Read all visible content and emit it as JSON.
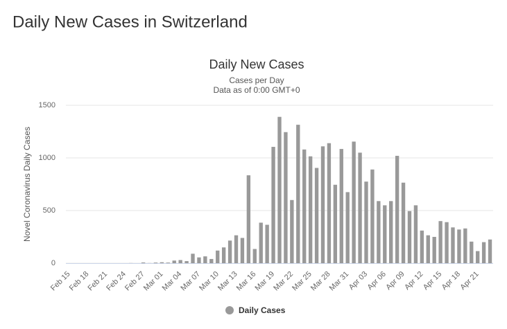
{
  "header": {
    "title": "Daily New Cases in Switzerland"
  },
  "chart_data": {
    "type": "bar",
    "title": "Daily New Cases",
    "subtitle": "Cases per Day",
    "note": "Data as of 0:00 GMT+0",
    "y_label": "Novel Coronavirus Daily Cases",
    "categories": [
      "Feb 15",
      null,
      null,
      "Feb 18",
      null,
      null,
      "Feb 21",
      null,
      null,
      "Feb 24",
      null,
      null,
      "Feb 27",
      null,
      null,
      "Mar 01",
      null,
      null,
      "Mar 04",
      null,
      null,
      "Mar 07",
      null,
      null,
      "Mar 10",
      null,
      null,
      "Mar 13",
      null,
      null,
      "Mar 16",
      null,
      null,
      "Mar 19",
      null,
      null,
      "Mar 22",
      null,
      null,
      "Mar 25",
      null,
      null,
      "Mar 28",
      null,
      null,
      "Mar 31",
      null,
      null,
      "Apr 03",
      null,
      null,
      "Apr 06",
      null,
      null,
      "Apr 09",
      null,
      null,
      "Apr 12",
      null,
      null,
      "Apr 15",
      null,
      null,
      "Apr 18",
      null,
      null,
      "Apr 21",
      null,
      null
    ],
    "series": [
      {
        "name": "Daily Cases",
        "color": "#999999",
        "values": [
          0,
          0,
          0,
          0,
          0,
          0,
          0,
          0,
          0,
          0,
          1,
          0,
          7,
          1,
          6,
          9,
          6,
          25,
          30,
          20,
          90,
          55,
          65,
          40,
          120,
          150,
          215,
          265,
          240,
          835,
          135,
          385,
          365,
          1105,
          1390,
          1245,
          600,
          1315,
          1080,
          1015,
          905,
          1110,
          1140,
          745,
          1085,
          675,
          1155,
          1050,
          775,
          890,
          590,
          550,
          590,
          1020,
          765,
          495,
          550,
          310,
          265,
          250,
          400,
          390,
          340,
          320,
          330,
          205,
          115,
          200,
          225
        ]
      }
    ],
    "ylim": [
      0,
      1500
    ],
    "yticks": [
      0,
      500,
      1000,
      1500
    ],
    "grid": true,
    "legend": "bottom"
  }
}
